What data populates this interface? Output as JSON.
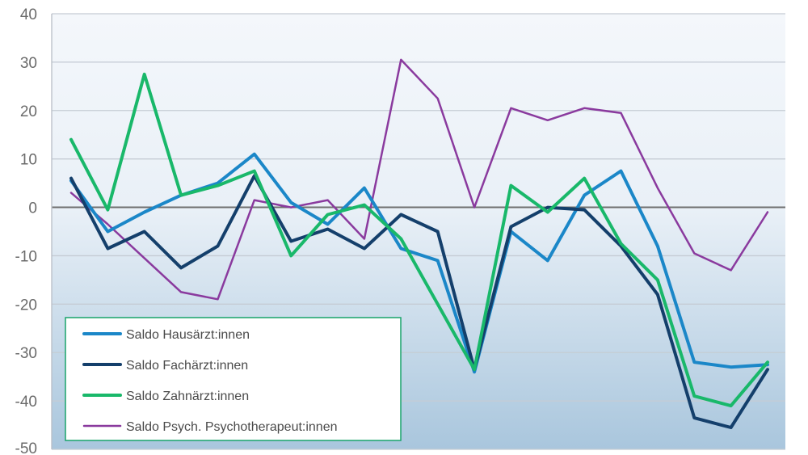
{
  "chart_data": {
    "type": "line",
    "ylim": [
      -50,
      40
    ],
    "yticks": [
      40,
      30,
      20,
      10,
      0,
      -10,
      -20,
      -30,
      -40,
      -50
    ],
    "yticks_labels": [
      "40",
      "30",
      "20",
      "10",
      "0",
      "-10",
      "-20",
      "-30",
      "-40",
      "-50"
    ],
    "grid": true,
    "legend_position": "bottom-left",
    "background_gradient": [
      "#f4f7fb",
      "#a9c6dd"
    ],
    "series": [
      {
        "name": "Saldo Hausärzt:innen",
        "color": "#1b87c8",
        "width": 4,
        "values": [
          5.5,
          -5,
          -1,
          2.5,
          5,
          11,
          1,
          -3.5,
          4,
          -8.5,
          -11,
          -34,
          -5,
          -11,
          2.5,
          7.5,
          -8,
          -32,
          -33,
          -32.5
        ]
      },
      {
        "name": "Saldo Fachärzt:innen",
        "color": "#143f6b",
        "width": 4,
        "values": [
          6,
          -8.5,
          -5,
          -12.5,
          -8,
          6.5,
          -7,
          -4.5,
          -8.5,
          -1.5,
          -5,
          -33.5,
          -4,
          0,
          -0.5,
          -8,
          -18,
          -43.5,
          -45.5,
          -33.5
        ]
      },
      {
        "name": "Saldo Zahnärzt:innen",
        "color": "#19b86a",
        "width": 4,
        "values": [
          14,
          -0.5,
          27.5,
          2.5,
          4.5,
          7.5,
          -10,
          -1.5,
          0.5,
          -6.5,
          -20,
          -33.5,
          4.5,
          -1,
          6,
          -7.5,
          -15,
          -39,
          -41,
          -32
        ]
      },
      {
        "name": "Saldo Psych. Psychotherapeut:innen",
        "color": "#8a3a9e",
        "width": 2.5,
        "values": [
          3,
          -3.5,
          -10.5,
          -17.5,
          -19,
          1.5,
          0,
          1.5,
          -6.5,
          30.5,
          22.5,
          0,
          20.5,
          18,
          20.5,
          19.5,
          4,
          -9.5,
          -13,
          -1
        ]
      }
    ]
  }
}
